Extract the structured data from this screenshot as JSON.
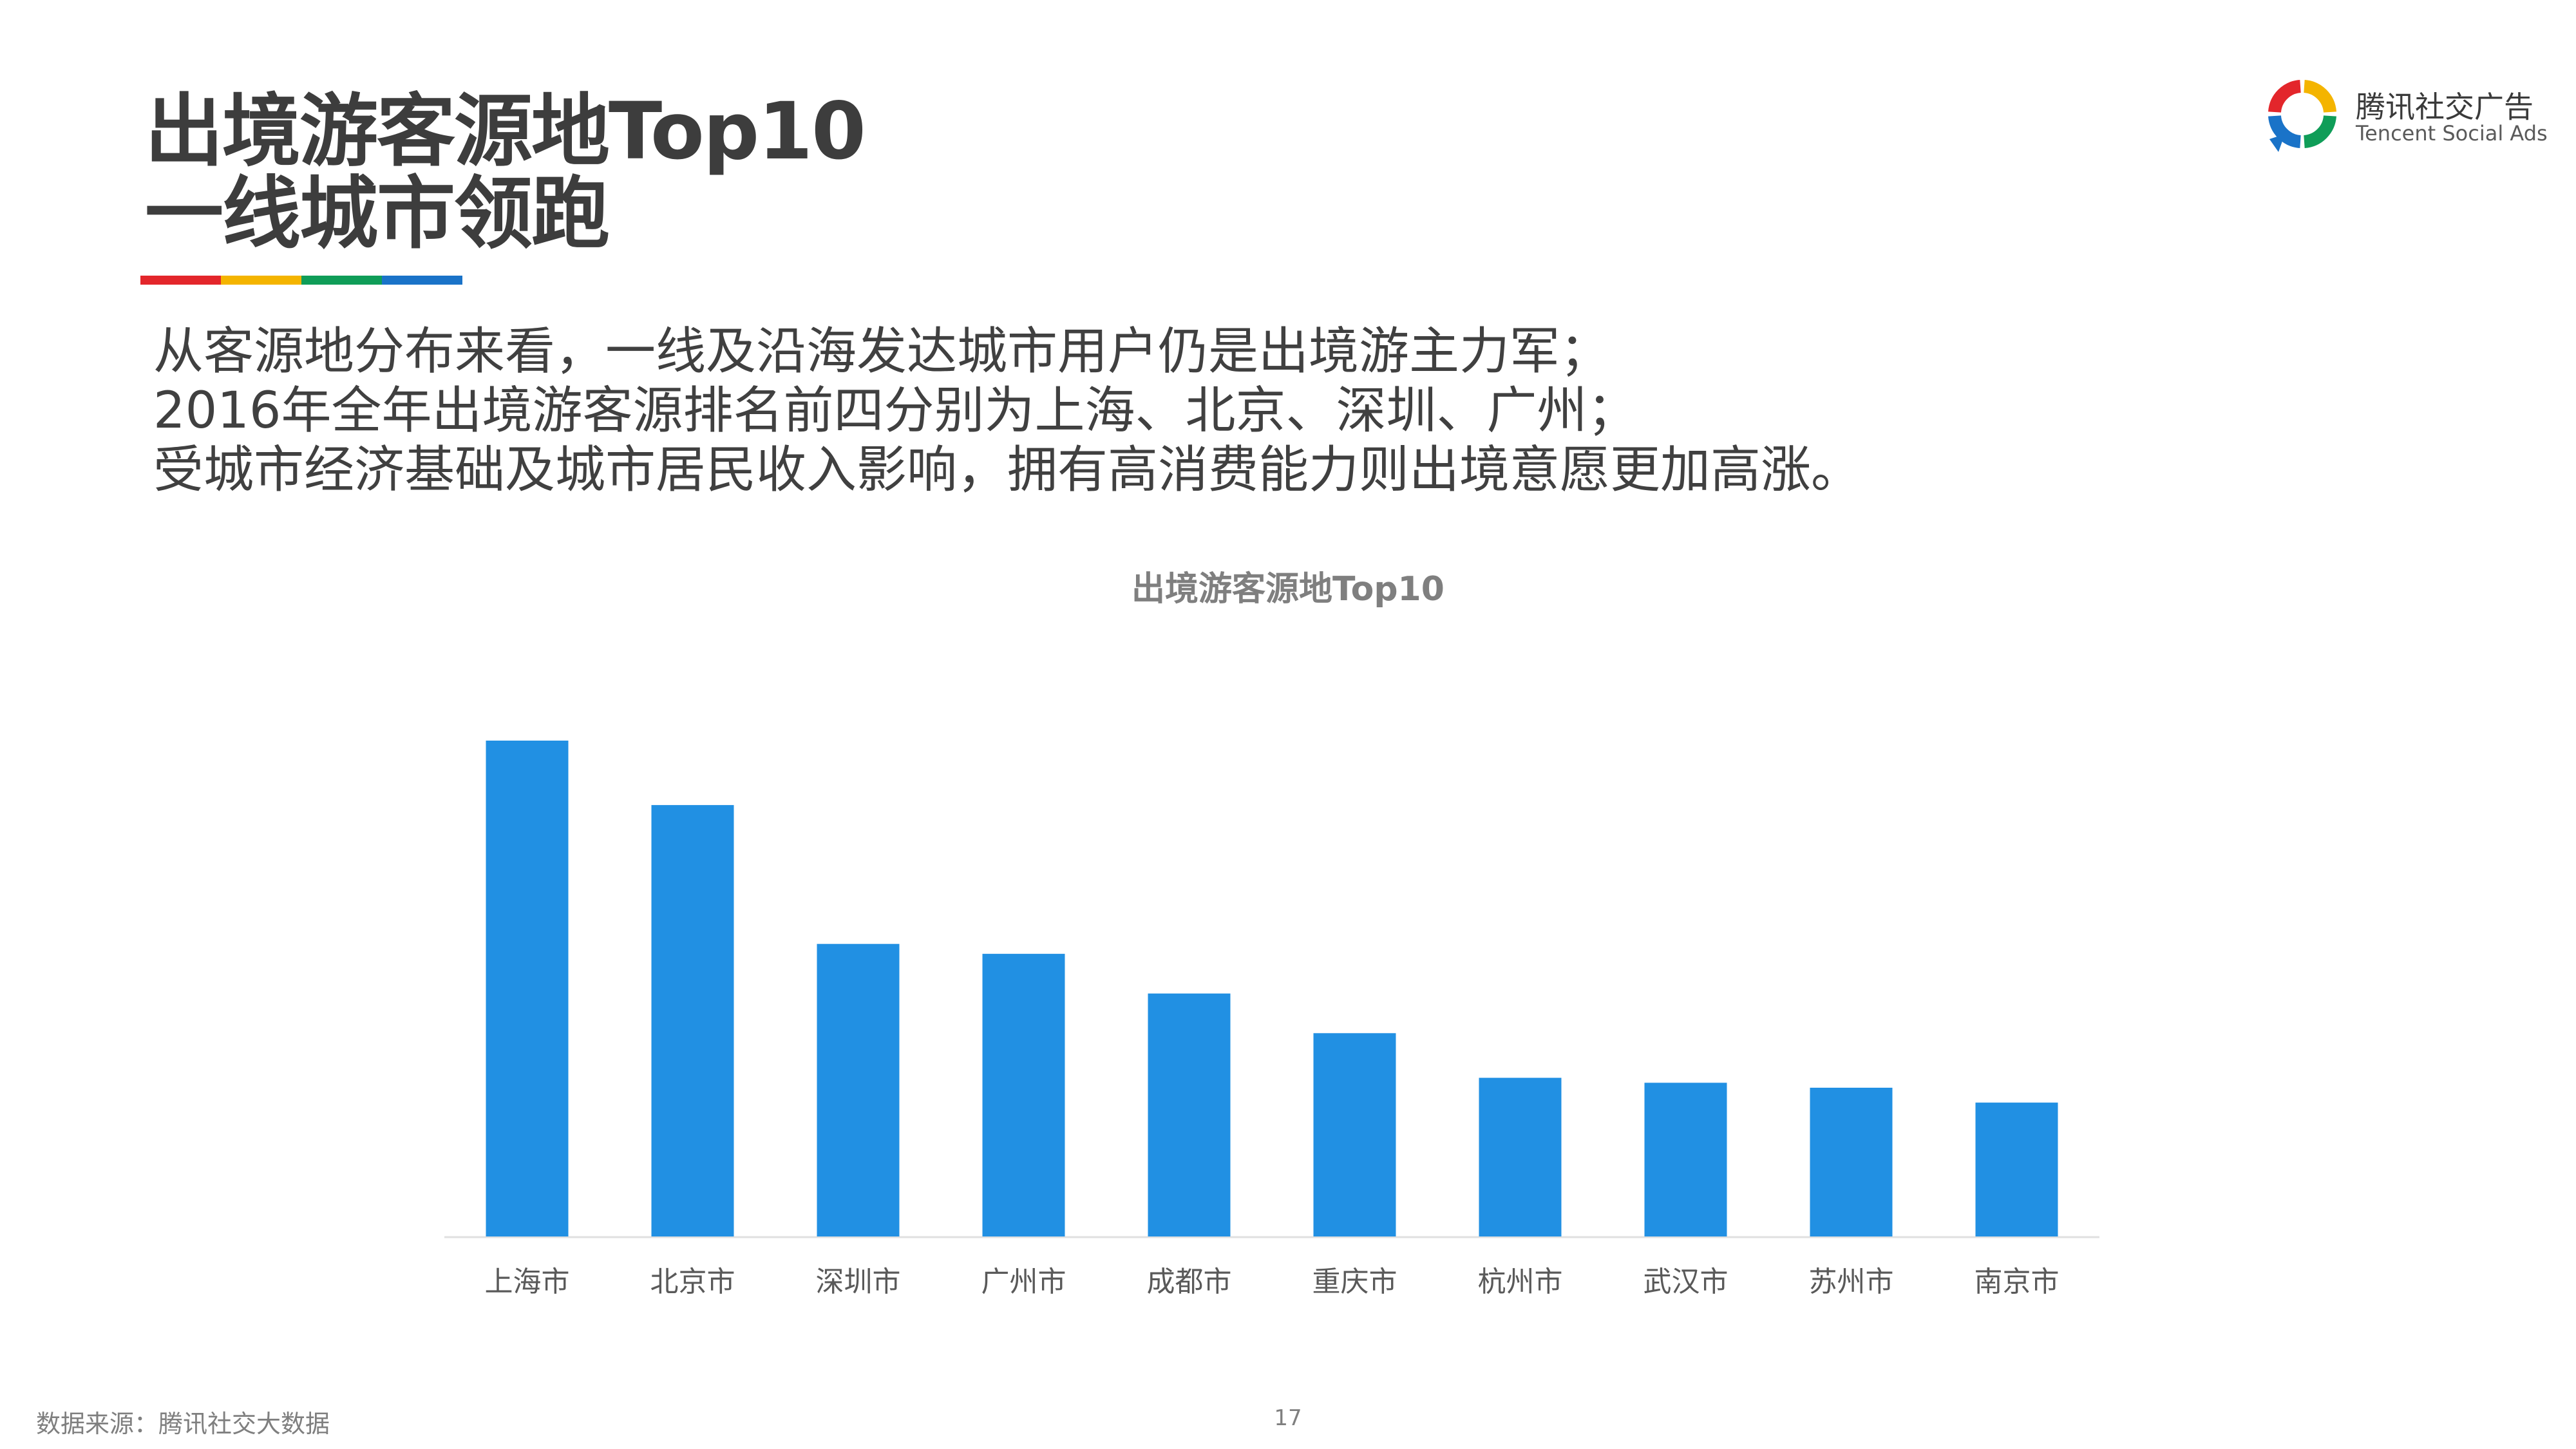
{
  "header": {
    "title_line1": "出境游客源地Top10",
    "title_line2": "一线城市领跑",
    "accent_colors": [
      "#e3262b",
      "#f4b400",
      "#0f9d58",
      "#1a73c8"
    ]
  },
  "intro": {
    "lines": [
      "从客源地分布来看，一线及沿海发达城市用户仍是出境游主力军；",
      "2016年全年出境游客源排名前四分别为上海、北京、深圳、广州；",
      "受城市经济基础及城市居民收入影响，拥有高消费能力则出境意愿更加高涨。"
    ]
  },
  "logo": {
    "name_cn": "腾讯社交广告",
    "name_en": "Tencent Social Ads",
    "colors": [
      "#e3262b",
      "#f4b400",
      "#0f9d58",
      "#1a73c8"
    ]
  },
  "chart_data": {
    "type": "bar",
    "title": "出境游客源地Top10",
    "categories": [
      "上海市",
      "北京市",
      "深圳市",
      "广州市",
      "成都市",
      "重庆市",
      "杭州市",
      "武汉市",
      "苏州市",
      "南京市"
    ],
    "values": [
      100,
      87,
      59,
      57,
      49,
      41,
      32,
      31,
      30,
      27
    ],
    "ylim": [
      0,
      100
    ],
    "bar_color": "#2190e3",
    "grid": false,
    "legend": "none"
  },
  "footer": {
    "source": "数据来源：腾讯社交大数据",
    "page_number": "17"
  }
}
